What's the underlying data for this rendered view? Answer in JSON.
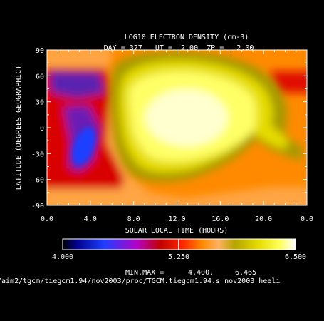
{
  "chart_data": {
    "type": "heatmap",
    "title": "LOG10 ELECTRON DENSITY (cm-3)",
    "subtitle": "DAY = 327   UT =  2.00  ZP =   2.00",
    "xlabel": "SOLAR LOCAL TIME (HOURS)",
    "ylabel": "LATITUDE (DEGREES GEOGRAPHIC)",
    "x_tick_labels": [
      "0.0",
      "4.0",
      "8.0",
      "12.0",
      "16.0",
      "20.0",
      "0.0"
    ],
    "y_tick_labels": [
      "90",
      "60",
      "30",
      "0",
      "-30",
      "-60",
      "-90"
    ],
    "xlim": [
      0,
      24
    ],
    "ylim": [
      -90,
      90
    ],
    "colorbar": {
      "min_label": "4.000",
      "mid_label": "5.250",
      "max_label": "6.500",
      "range": [
        4.0,
        6.5
      ],
      "colors": [
        "#000000",
        "#00008c",
        "#1f3fff",
        "#b400c8",
        "#c00000",
        "#ff2b00",
        "#ff8a00",
        "#ffb060",
        "#b5a500",
        "#e6dc00",
        "#ffff55",
        "#ffffff"
      ]
    },
    "min_max_label": "MIN,MAX =",
    "min_value": "4.400,",
    "max_value": "6.465",
    "regions": [
      {
        "name": "dayside-crest",
        "lt": 12.5,
        "lat": 10,
        "value": 6.45
      },
      {
        "name": "night-trough",
        "lt": 3.5,
        "lat": -30,
        "value": 4.45
      },
      {
        "name": "night-north",
        "lt": 2.5,
        "lat": 50,
        "value": 4.7
      }
    ]
  },
  "footer": {
    "path": "/aim2/tgcm/tiegcm1.94/nov2003/proc/TGCM.tiegcm1.94.s_nov2003_heeli"
  }
}
